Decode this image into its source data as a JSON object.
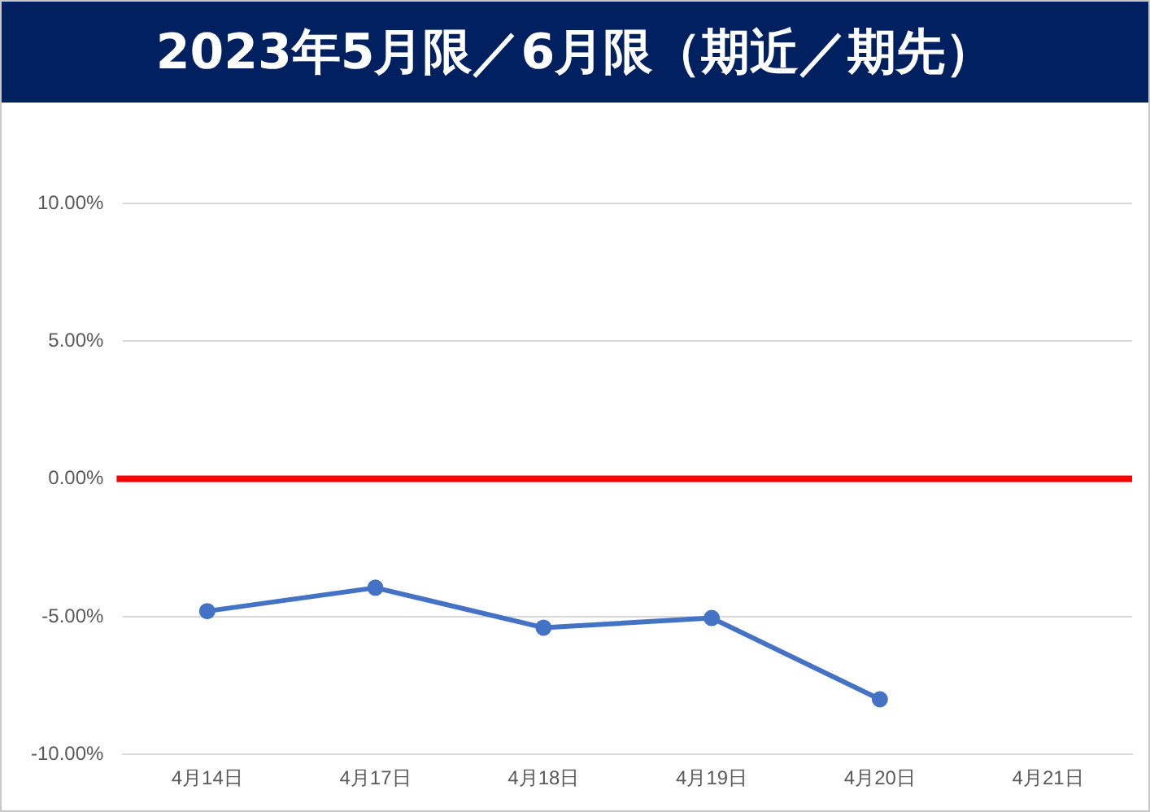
{
  "chart_data": {
    "type": "line",
    "title": "2023年5月限／6月限（期近／期先）",
    "categories": [
      "4月14日",
      "4月17日",
      "4月18日",
      "4月19日",
      "4月20日",
      "4月21日"
    ],
    "series": [
      {
        "color": "#4472c4",
        "values": [
          -4.8,
          -3.95,
          -5.4,
          -5.05,
          -8.0,
          null
        ]
      }
    ],
    "ylim": [
      -10,
      10
    ],
    "yticks": [
      {
        "value": -10,
        "label": "-10.00%"
      },
      {
        "value": -5,
        "label": "-5.00%"
      },
      {
        "value": 0,
        "label": "0.00%"
      },
      {
        "value": 5,
        "label": "5.00%"
      },
      {
        "value": 10,
        "label": "10.00%"
      }
    ],
    "ref_lines": [
      {
        "axis": "y",
        "value": 0,
        "color": "#ff0000"
      }
    ],
    "grid": "y",
    "legend": false,
    "marker": "circle",
    "line_style": "solid"
  }
}
